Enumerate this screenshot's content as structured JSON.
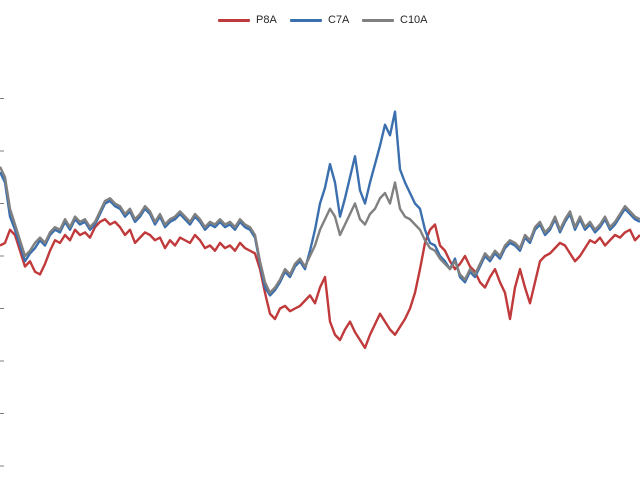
{
  "chart_data": {
    "type": "line",
    "title": "",
    "xlabel": "",
    "ylabel": "",
    "grid": false,
    "legend_position": "top-center",
    "x": [
      0,
      1,
      2,
      3,
      4,
      5,
      6,
      7,
      8,
      9,
      10,
      11,
      12,
      13,
      14,
      15,
      16,
      17,
      18,
      19,
      20,
      21,
      22,
      23,
      24,
      25,
      26,
      27,
      28,
      29,
      30,
      31,
      32,
      33,
      34,
      35,
      36,
      37,
      38,
      39,
      40,
      41,
      42,
      43,
      44,
      45,
      46,
      47,
      48,
      49,
      50,
      51,
      52,
      53,
      54,
      55,
      56,
      57,
      58,
      59,
      60,
      61,
      62,
      63,
      64,
      65,
      66,
      67,
      68,
      69,
      70,
      71,
      72,
      73,
      74,
      75,
      76,
      77,
      78,
      79,
      80,
      81,
      82,
      83,
      84,
      85,
      86,
      87,
      88,
      89,
      90,
      91,
      92,
      93,
      94,
      95,
      96,
      97,
      98,
      99,
      100,
      101,
      102,
      103,
      104,
      105,
      106,
      107,
      108,
      109,
      110,
      111,
      112,
      113,
      114,
      115,
      116,
      117,
      118,
      119,
      120,
      121,
      122,
      123,
      124,
      125,
      126,
      127,
      128
    ],
    "series": [
      {
        "name": "P8A",
        "color": "#c0393b",
        "values": [
          0.04,
          0.05,
          0.1,
          0.08,
          0.02,
          -0.04,
          -0.02,
          -0.06,
          -0.07,
          -0.03,
          0.02,
          0.06,
          0.05,
          0.08,
          0.06,
          0.1,
          0.08,
          0.09,
          0.07,
          0.11,
          0.13,
          0.14,
          0.12,
          0.13,
          0.11,
          0.08,
          0.1,
          0.05,
          0.07,
          0.09,
          0.08,
          0.06,
          0.07,
          0.03,
          0.06,
          0.04,
          0.07,
          0.06,
          0.05,
          0.08,
          0.06,
          0.03,
          0.04,
          0.02,
          0.05,
          0.03,
          0.04,
          0.02,
          0.05,
          0.03,
          0.02,
          0.01,
          -0.05,
          -0.14,
          -0.22,
          -0.24,
          -0.2,
          -0.19,
          -0.21,
          -0.2,
          -0.19,
          -0.17,
          -0.15,
          -0.18,
          -0.12,
          -0.08,
          -0.25,
          -0.3,
          -0.32,
          -0.28,
          -0.25,
          -0.29,
          -0.32,
          -0.35,
          -0.3,
          -0.26,
          -0.22,
          -0.25,
          -0.28,
          -0.3,
          -0.27,
          -0.24,
          -0.2,
          -0.14,
          -0.05,
          0.05,
          0.1,
          0.12,
          0.04,
          0.02,
          -0.02,
          -0.05,
          -0.03,
          0.0,
          -0.04,
          -0.06,
          -0.1,
          -0.12,
          -0.08,
          -0.05,
          -0.1,
          -0.14,
          -0.24,
          -0.12,
          -0.05,
          -0.12,
          -0.18,
          -0.1,
          -0.02,
          0.0,
          0.01,
          0.03,
          0.05,
          0.04,
          0.01,
          -0.02,
          0.0,
          0.03,
          0.06,
          0.05,
          0.07,
          0.04,
          0.06,
          0.08,
          0.07,
          0.09,
          0.1,
          0.06,
          0.08
        ]
      },
      {
        "name": "C7A",
        "color": "#3b6fad",
        "values": [
          0.32,
          0.28,
          0.15,
          0.1,
          0.04,
          -0.02,
          0.01,
          0.03,
          0.06,
          0.04,
          0.08,
          0.1,
          0.09,
          0.13,
          0.1,
          0.14,
          0.12,
          0.13,
          0.1,
          0.12,
          0.16,
          0.2,
          0.21,
          0.19,
          0.18,
          0.15,
          0.17,
          0.13,
          0.15,
          0.18,
          0.16,
          0.12,
          0.15,
          0.11,
          0.13,
          0.14,
          0.16,
          0.14,
          0.12,
          0.15,
          0.13,
          0.1,
          0.12,
          0.11,
          0.13,
          0.11,
          0.12,
          0.1,
          0.13,
          0.11,
          0.1,
          0.07,
          -0.03,
          -0.12,
          -0.15,
          -0.13,
          -0.1,
          -0.06,
          -0.08,
          -0.04,
          -0.02,
          -0.05,
          0.02,
          0.1,
          0.2,
          0.26,
          0.35,
          0.28,
          0.15,
          0.22,
          0.3,
          0.38,
          0.25,
          0.2,
          0.28,
          0.35,
          0.42,
          0.5,
          0.46,
          0.55,
          0.33,
          0.28,
          0.24,
          0.2,
          0.18,
          0.1,
          0.05,
          0.04,
          0.0,
          -0.02,
          -0.05,
          -0.01,
          -0.08,
          -0.1,
          -0.06,
          -0.08,
          -0.04,
          0.0,
          -0.02,
          0.01,
          -0.01,
          0.03,
          0.05,
          0.04,
          0.02,
          0.07,
          0.05,
          0.1,
          0.12,
          0.08,
          0.1,
          0.14,
          0.09,
          0.13,
          0.16,
          0.1,
          0.14,
          0.1,
          0.12,
          0.09,
          0.11,
          0.14,
          0.1,
          0.12,
          0.15,
          0.18,
          0.16,
          0.14,
          0.13
        ]
      },
      {
        "name": "C10A",
        "color": "#808080",
        "values": [
          0.34,
          0.3,
          0.18,
          0.12,
          0.06,
          0.0,
          0.02,
          0.05,
          0.07,
          0.05,
          0.09,
          0.11,
          0.1,
          0.14,
          0.11,
          0.15,
          0.13,
          0.14,
          0.11,
          0.13,
          0.17,
          0.21,
          0.22,
          0.2,
          0.19,
          0.16,
          0.18,
          0.14,
          0.16,
          0.19,
          0.17,
          0.13,
          0.16,
          0.12,
          0.14,
          0.15,
          0.17,
          0.15,
          0.13,
          0.16,
          0.14,
          0.11,
          0.13,
          0.12,
          0.14,
          0.12,
          0.13,
          0.11,
          0.14,
          0.12,
          0.11,
          0.08,
          -0.02,
          -0.1,
          -0.14,
          -0.12,
          -0.09,
          -0.05,
          -0.07,
          -0.03,
          -0.01,
          -0.04,
          0.0,
          0.04,
          0.1,
          0.14,
          0.18,
          0.15,
          0.08,
          0.12,
          0.16,
          0.2,
          0.14,
          0.12,
          0.16,
          0.18,
          0.22,
          0.24,
          0.2,
          0.28,
          0.18,
          0.15,
          0.14,
          0.12,
          0.1,
          0.06,
          0.03,
          0.02,
          -0.01,
          -0.03,
          -0.05,
          -0.02,
          -0.07,
          -0.09,
          -0.05,
          -0.07,
          -0.03,
          0.01,
          -0.01,
          0.02,
          0.0,
          0.04,
          0.06,
          0.05,
          0.03,
          0.08,
          0.06,
          0.11,
          0.13,
          0.09,
          0.11,
          0.15,
          0.1,
          0.14,
          0.17,
          0.11,
          0.15,
          0.11,
          0.13,
          0.1,
          0.12,
          0.15,
          0.11,
          0.13,
          0.16,
          0.19,
          0.17,
          0.15,
          0.14
        ]
      }
    ],
    "ylim": [
      -0.8,
      0.8
    ],
    "y_ticks": [
      -0.8,
      -0.6,
      -0.4,
      -0.2,
      0,
      0.2,
      0.4,
      0.6
    ]
  }
}
